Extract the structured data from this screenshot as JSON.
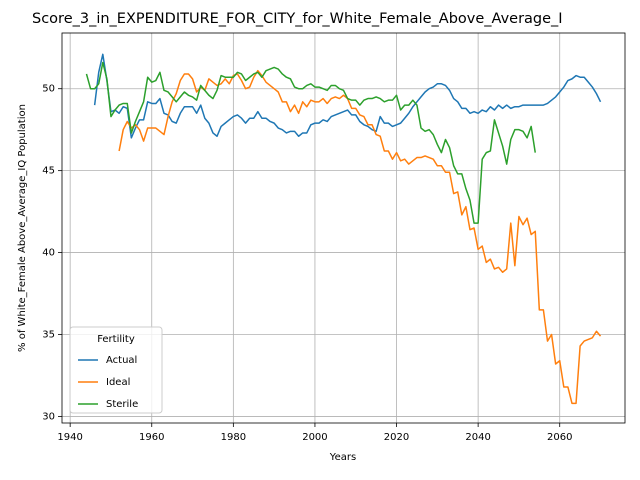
{
  "chart_data": {
    "type": "line",
    "title": "Score_3_in_EXPENDITURE_FOR_CITY_for_White_Female_Above_Average_I",
    "xlabel": "Years",
    "ylabel": "% of White_Female Above_Average_IQ Population",
    "x": [
      1944,
      1945,
      1946,
      1947,
      1948,
      1949,
      1950,
      1951,
      1952,
      1953,
      1954,
      1955,
      1956,
      1957,
      1958,
      1959,
      1960,
      1961,
      1962,
      1963,
      1964,
      1965,
      1966,
      1967,
      1968,
      1969,
      1970,
      1971,
      1972,
      1973,
      1974,
      1975,
      1976,
      1977,
      1978,
      1979,
      1980,
      1981,
      1982,
      1983,
      1984,
      1985,
      1986,
      1987,
      1988,
      1989,
      1990,
      1991,
      1992,
      1993,
      1994,
      1995,
      1996,
      1997,
      1998,
      1999,
      2000,
      2001,
      2002,
      2003,
      2004,
      2005,
      2006,
      2007,
      2008,
      2009,
      2010,
      2011,
      2012,
      2013,
      2014,
      2015,
      2016,
      2017,
      2018,
      2019,
      2020,
      2021,
      2022,
      2023,
      2024,
      2025,
      2026,
      2027,
      2028,
      2029,
      2030,
      2031,
      2032,
      2033,
      2034,
      2035,
      2036,
      2037,
      2038,
      2039,
      2040,
      2041,
      2042,
      2043,
      2044,
      2045,
      2046,
      2047,
      2048,
      2049,
      2050,
      2051,
      2052,
      2053,
      2054,
      2055,
      2056,
      2057,
      2058,
      2059,
      2060,
      2061,
      2062,
      2063,
      2064,
      2065,
      2066,
      2067,
      2068,
      2069,
      2070
    ],
    "series": [
      {
        "name": "Actual",
        "color": "#1f77b4",
        "values": [
          null,
          null,
          49.0,
          51.0,
          52.1,
          50.5,
          48.6,
          48.7,
          48.5,
          48.9,
          48.8,
          47.0,
          47.6,
          48.1,
          48.1,
          49.2,
          49.1,
          49.1,
          49.4,
          48.5,
          48.4,
          48.0,
          47.9,
          48.5,
          48.9,
          48.9,
          48.9,
          48.5,
          49.0,
          48.2,
          47.9,
          47.3,
          47.1,
          47.7,
          47.9,
          48.1,
          48.3,
          48.4,
          48.2,
          47.9,
          48.2,
          48.2,
          48.6,
          48.2,
          48.2,
          48.0,
          47.9,
          47.6,
          47.5,
          47.3,
          47.4,
          47.4,
          47.1,
          47.3,
          47.3,
          47.8,
          47.9,
          47.9,
          48.1,
          48.0,
          48.3,
          48.4,
          48.5,
          48.6,
          48.7,
          48.4,
          48.4,
          48.0,
          47.8,
          47.7,
          47.5,
          47.4,
          48.3,
          47.9,
          47.9,
          47.7,
          47.8,
          47.9,
          48.2,
          48.5,
          48.9,
          49.2,
          49.5,
          49.8,
          50.0,
          50.1,
          50.3,
          50.3,
          50.2,
          49.9,
          49.4,
          49.2,
          48.8,
          48.8,
          48.5,
          48.6,
          48.5,
          48.7,
          48.6,
          48.9,
          48.7,
          49.0,
          48.8,
          49.0,
          48.8,
          48.9,
          48.9,
          49.0,
          49.0,
          49.0,
          49.0,
          49.0,
          49.0,
          49.1,
          49.3,
          49.5,
          49.8,
          50.1,
          50.5,
          50.6,
          50.8,
          50.7,
          50.7,
          50.4,
          50.1,
          49.7,
          49.2
        ]
      },
      {
        "name": "Ideal",
        "color": "#ff7f0e",
        "values": [
          null,
          null,
          null,
          null,
          null,
          null,
          null,
          null,
          46.2,
          47.5,
          48.0,
          47.6,
          47.8,
          47.5,
          46.8,
          47.6,
          47.6,
          47.6,
          47.4,
          47.2,
          48.3,
          49.2,
          49.7,
          50.5,
          50.9,
          50.9,
          50.6,
          49.8,
          50.1,
          49.9,
          50.6,
          50.4,
          50.2,
          50.3,
          50.6,
          50.3,
          50.8,
          50.9,
          50.5,
          50.0,
          50.1,
          50.7,
          51.1,
          50.8,
          50.4,
          50.2,
          50.0,
          49.8,
          49.2,
          49.2,
          48.6,
          49.0,
          48.5,
          49.2,
          48.9,
          49.3,
          49.2,
          49.2,
          49.4,
          49.1,
          49.4,
          49.5,
          49.4,
          49.6,
          49.4,
          48.8,
          48.8,
          48.4,
          48.3,
          47.8,
          47.8,
          47.2,
          47.1,
          46.2,
          46.2,
          45.7,
          46.1,
          45.6,
          45.7,
          45.4,
          45.6,
          45.8,
          45.8,
          45.9,
          45.8,
          45.7,
          45.3,
          45.3,
          44.9,
          44.9,
          43.6,
          43.7,
          42.3,
          42.8,
          41.4,
          41.5,
          40.2,
          40.4,
          39.4,
          39.6,
          39.0,
          39.1,
          38.8,
          39.0,
          41.8,
          39.2,
          42.2,
          41.7,
          42.1,
          41.1,
          41.3,
          36.5,
          36.5,
          34.6,
          35.0,
          33.2,
          33.4,
          31.8,
          31.8,
          30.8,
          30.8,
          34.3,
          34.6,
          34.7,
          34.8,
          35.2,
          34.9
        ]
      },
      {
        "name": "Sterile",
        "color": "#2ca02c",
        "values": [
          50.9,
          50.0,
          50.0,
          50.3,
          51.6,
          50.6,
          48.3,
          48.7,
          49.0,
          49.1,
          49.1,
          47.3,
          48.0,
          48.6,
          49.2,
          50.7,
          50.4,
          50.5,
          51.0,
          49.9,
          49.8,
          49.5,
          49.2,
          49.5,
          49.8,
          49.6,
          49.5,
          49.3,
          50.2,
          49.9,
          49.6,
          49.4,
          49.9,
          50.8,
          50.7,
          50.7,
          50.7,
          51.0,
          50.9,
          50.5,
          50.7,
          50.9,
          51.0,
          50.7,
          51.1,
          51.2,
          51.3,
          51.2,
          50.9,
          50.7,
          50.6,
          50.1,
          50.0,
          50.0,
          50.2,
          50.3,
          50.1,
          50.1,
          50.0,
          49.9,
          50.2,
          50.2,
          50.0,
          49.9,
          49.4,
          49.3,
          49.3,
          49.0,
          49.3,
          49.4,
          49.4,
          49.5,
          49.4,
          49.2,
          49.3,
          49.3,
          49.6,
          48.7,
          49.0,
          49.0,
          49.3,
          49.0,
          47.6,
          47.4,
          47.5,
          47.2,
          46.6,
          46.1,
          46.9,
          46.4,
          45.3,
          44.8,
          44.8,
          43.9,
          43.2,
          41.8,
          41.8,
          45.7,
          46.1,
          46.2,
          48.1,
          47.3,
          46.5,
          45.4,
          46.9,
          47.5,
          47.5,
          47.4,
          47.0,
          47.7,
          46.1,
          null,
          null,
          null,
          null,
          null,
          null,
          null,
          null,
          null,
          null,
          null,
          null,
          null,
          null,
          null,
          null
        ]
      }
    ],
    "xlim": [
      1938,
      2076
    ],
    "ylim": [
      29.6,
      53.4
    ],
    "xticks": [
      1940,
      1960,
      1980,
      2000,
      2020,
      2040,
      2060
    ],
    "yticks": [
      30,
      35,
      40,
      45,
      50
    ],
    "grid": true,
    "legend_title": "Fertility",
    "legend_loc": "lower left"
  }
}
